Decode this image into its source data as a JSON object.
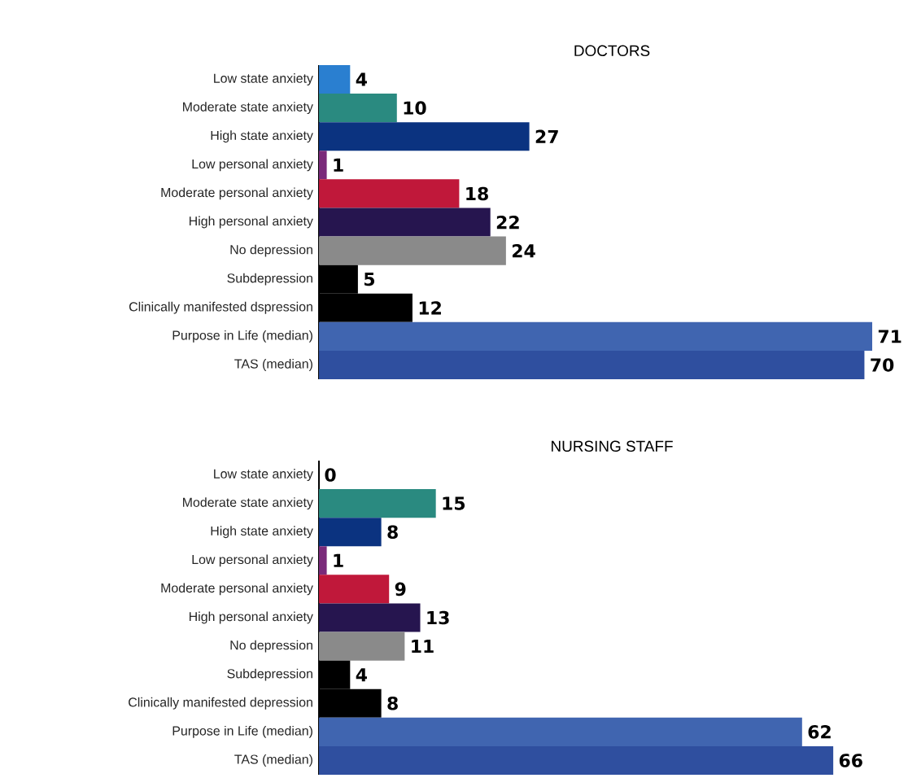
{
  "chart_data": [
    {
      "type": "bar",
      "orientation": "horizontal",
      "title": "DOCTORS",
      "data_labels": true,
      "categories": [
        "Low state anxiety",
        "Moderate state anxiety",
        "High state anxiety",
        "Low personal anxiety",
        "Moderate personal anxiety",
        "High personal anxiety",
        "No depression",
        "Subdepression",
        "Clinically manifested dspression",
        "Purpose in Life (median)",
        "TAS (median)"
      ],
      "values": [
        4,
        10,
        27,
        1,
        18,
        22,
        24,
        5,
        12,
        71,
        70
      ],
      "colors": [
        "#2a7fd0",
        "#2a8a80",
        "#0b3380",
        "#7a2a7a",
        "#c0183a",
        "#26154f",
        "#8a8a8a",
        "#000000",
        "#000000",
        "#4065b0",
        "#2f4f9f"
      ]
    },
    {
      "type": "bar",
      "orientation": "horizontal",
      "title": "NURSING STAFF",
      "data_labels": true,
      "categories": [
        "Low state anxiety",
        "Moderate state anxiety",
        "High state anxiety",
        "Low personal anxiety",
        "Moderate personal anxiety",
        "High personal anxiety",
        "No depression",
        "Subdepression",
        "Clinically manifested depression",
        "Purpose in Life (median)",
        "TAS (median)"
      ],
      "values": [
        0,
        15,
        8,
        1,
        9,
        13,
        11,
        4,
        8,
        62,
        66
      ],
      "colors": [
        "#2a7fd0",
        "#2a8a80",
        "#0b3380",
        "#7a2a7a",
        "#c0183a",
        "#26154f",
        "#8a8a8a",
        "#000000",
        "#000000",
        "#4065b0",
        "#2f4f9f"
      ]
    }
  ]
}
